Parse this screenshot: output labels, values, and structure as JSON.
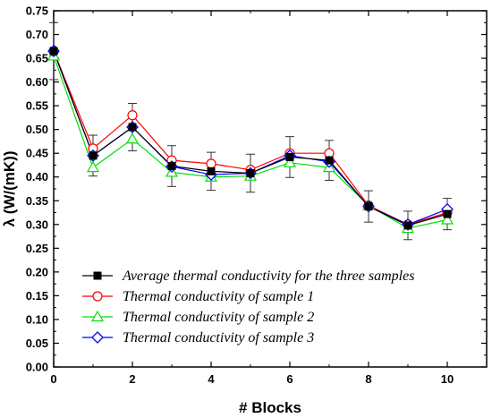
{
  "chart_data": {
    "type": "line",
    "xlabel": "# Blocks",
    "ylabel": "λ (W/(mK))",
    "xlim": [
      0,
      11
    ],
    "ylim": [
      0.0,
      0.75
    ],
    "xticks": [
      0,
      2,
      4,
      6,
      8,
      10
    ],
    "yticks": [
      0.0,
      0.05,
      0.1,
      0.15,
      0.2,
      0.25,
      0.3,
      0.35,
      0.4,
      0.45,
      0.5,
      0.55,
      0.6,
      0.65,
      0.7,
      0.75
    ],
    "grid": false,
    "legend": "bottom-right",
    "x": [
      0,
      1,
      2,
      3,
      4,
      5,
      6,
      7,
      8,
      9,
      10
    ],
    "series": [
      {
        "name": "Average thermal conductivity for the three samples",
        "marker": "square-filled",
        "color": "#000000",
        "values": [
          0.665,
          0.445,
          0.505,
          0.423,
          0.412,
          0.408,
          0.442,
          0.435,
          0.338,
          0.298,
          0.322
        ],
        "error": [
          0.06,
          0.043,
          0.05,
          0.043,
          0.04,
          0.04,
          0.043,
          0.042,
          0.033,
          0.03,
          0.033
        ]
      },
      {
        "name": "Thermal conductivity of sample 1",
        "marker": "circle-open",
        "color": "#ff0000",
        "values": [
          0.665,
          0.46,
          0.53,
          0.435,
          0.428,
          0.415,
          0.45,
          0.45,
          0.34,
          0.3,
          0.325
        ]
      },
      {
        "name": "Thermal conductivity of sample 2",
        "marker": "triangle-open",
        "color": "#00e000",
        "values": [
          0.655,
          0.42,
          0.48,
          0.41,
          0.4,
          0.402,
          0.43,
          0.42,
          0.34,
          0.292,
          0.31
        ]
      },
      {
        "name": "Thermal conductivity of sample 3",
        "marker": "diamond-open",
        "color": "#0000ff",
        "values": [
          0.665,
          0.445,
          0.505,
          0.422,
          0.405,
          0.408,
          0.445,
          0.432,
          0.338,
          0.3,
          0.332
        ]
      }
    ]
  }
}
